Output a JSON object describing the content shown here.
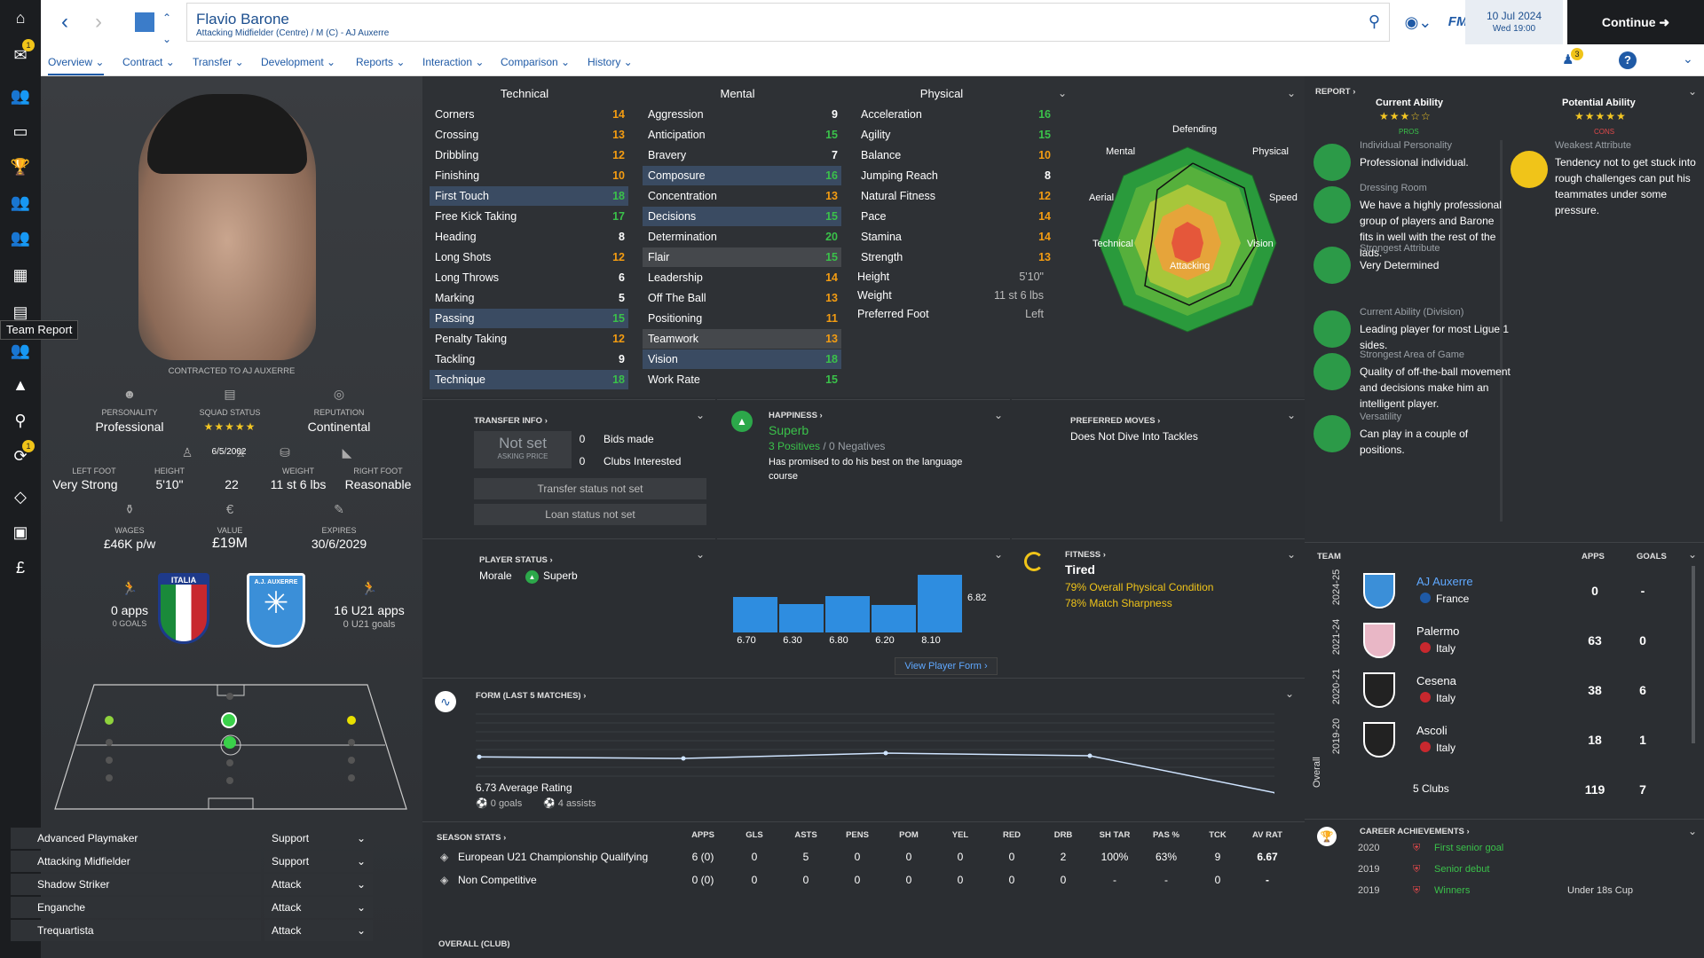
{
  "tooltip": "Team Report",
  "nav": {
    "badge1": "1",
    "badge2": "1"
  },
  "header": {
    "name": "Flavio Barone",
    "desc": "Attacking Midfielder (Centre) / M (C) - AJ Auxerre",
    "date": "10 Jul 2024",
    "time": "Wed 19:00",
    "continue": "Continue",
    "fm": "FM"
  },
  "tabs": [
    "Overview",
    "Contract",
    "Transfer",
    "Development",
    "Reports",
    "Interaction",
    "Comparison",
    "History"
  ],
  "notif_badge": "3",
  "left": {
    "contracted": "CONTRACTED TO AJ AUXERRE",
    "personality_label": "PERSONALITY",
    "personality": "Professional",
    "squad_label": "SQUAD STATUS",
    "squad_stars": "★★★★★",
    "reputation_label": "REPUTATION",
    "reputation": "Continental",
    "leftfoot_label": "LEFT FOOT",
    "leftfoot": "Very Strong",
    "height_label": "HEIGHT",
    "height": "5'10\"",
    "dob": "6/5/2002",
    "age": "22",
    "weight_label": "WEIGHT",
    "weight": "11 st 6 lbs",
    "rightfoot_label": "RIGHT FOOT",
    "rightfoot": "Reasonable",
    "wages_label": "WAGES",
    "wages": "£46K p/w",
    "value_label": "VALUE",
    "value": "£19M",
    "expires_label": "EXPIRES",
    "expires": "30/6/2029",
    "apps": "0 apps",
    "goals": "0 GOALS",
    "u21apps": "16 U21 apps",
    "u21goals": "0 U21 goals",
    "italia": "ITALIA",
    "auxerre": "A.J. AUXERRE"
  },
  "roles": [
    {
      "name": "Advanced Playmaker",
      "duty": "Support"
    },
    {
      "name": "Attacking Midfielder",
      "duty": "Support"
    },
    {
      "name": "Shadow Striker",
      "duty": "Attack"
    },
    {
      "name": "Enganche",
      "duty": "Attack"
    },
    {
      "name": "Trequartista",
      "duty": "Attack"
    }
  ],
  "attributes": {
    "headers": [
      "Technical",
      "Mental",
      "Physical"
    ],
    "technical": [
      [
        "Corners",
        "14"
      ],
      [
        "Crossing",
        "13"
      ],
      [
        "Dribbling",
        "12"
      ],
      [
        "Finishing",
        "10"
      ],
      [
        "First Touch",
        "18"
      ],
      [
        "Free Kick Taking",
        "17"
      ],
      [
        "Heading",
        "8"
      ],
      [
        "Long Shots",
        "12"
      ],
      [
        "Long Throws",
        "6"
      ],
      [
        "Marking",
        "5"
      ],
      [
        "Passing",
        "15"
      ],
      [
        "Penalty Taking",
        "12"
      ],
      [
        "Tackling",
        "9"
      ],
      [
        "Technique",
        "18"
      ]
    ],
    "mental": [
      [
        "Aggression",
        "9"
      ],
      [
        "Anticipation",
        "15"
      ],
      [
        "Bravery",
        "7"
      ],
      [
        "Composure",
        "16"
      ],
      [
        "Concentration",
        "13"
      ],
      [
        "Decisions",
        "15"
      ],
      [
        "Determination",
        "20"
      ],
      [
        "Flair",
        "15"
      ],
      [
        "Leadership",
        "14"
      ],
      [
        "Off The Ball",
        "13"
      ],
      [
        "Positioning",
        "11"
      ],
      [
        "Teamwork",
        "13"
      ],
      [
        "Vision",
        "18"
      ],
      [
        "Work Rate",
        "15"
      ]
    ],
    "physical": [
      [
        "Acceleration",
        "16"
      ],
      [
        "Agility",
        "15"
      ],
      [
        "Balance",
        "10"
      ],
      [
        "Jumping Reach",
        "8"
      ],
      [
        "Natural Fitness",
        "12"
      ],
      [
        "Pace",
        "14"
      ],
      [
        "Stamina",
        "14"
      ],
      [
        "Strength",
        "13"
      ]
    ],
    "height_label": "Height",
    "height": "5'10\"",
    "weight_label": "Weight",
    "weight": "11 st 6 lbs",
    "foot_label": "Preferred Foot",
    "foot": "Left"
  },
  "radar": {
    "labels": [
      "Defending",
      "Physical",
      "Speed",
      "Vision",
      "Attacking",
      "Technical",
      "Aerial",
      "Mental"
    ]
  },
  "report": {
    "title": "REPORT",
    "ca_label": "Current Ability",
    "pa_label": "Potential Ability",
    "ca_stars": "★★★☆☆",
    "pa_stars": "★★★★★",
    "pros": "PROS",
    "cons": "CONS",
    "pros_items": [
      {
        "label": "Individual Personality",
        "text": "Professional individual."
      },
      {
        "label": "Dressing Room",
        "text": "We have a highly professional group of players and Barone fits in well with the rest of the lads."
      },
      {
        "label": "Strongest Attribute",
        "text": "Very Determined"
      },
      {
        "label": "Current Ability (Division)",
        "text": "Leading player for most Ligue 1 sides."
      },
      {
        "label": "Strongest Area of Game",
        "text": "Quality of off-the-ball movement and decisions make him an intelligent player."
      },
      {
        "label": "Versatility",
        "text": "Can play in a couple of positions."
      }
    ],
    "cons_items": [
      {
        "label": "Weakest Attribute",
        "text": "Tendency not to get stuck into rough challenges can put his teammates under some pressure."
      }
    ]
  },
  "transfer": {
    "title": "TRANSFER INFO",
    "not_set": "Not set",
    "asking": "ASKING PRICE",
    "bids_n": "0",
    "bids": "Bids made",
    "clubs_n": "0",
    "clubs": "Clubs Interested",
    "status1": "Transfer status not set",
    "status2": "Loan status not set"
  },
  "happiness": {
    "title": "HAPPINESS",
    "value": "Superb",
    "positives": "3 Positives",
    "sep": " / ",
    "negatives": "0 Negatives",
    "text": "Has promised to do his best on the language course"
  },
  "moves": {
    "title": "PREFERRED MOVES",
    "text": "Does Not Dive Into Tackles"
  },
  "status": {
    "title": "PLAYER STATUS",
    "morale_label": "Morale",
    "morale": "Superb"
  },
  "form_bars": {
    "values": [
      6.7,
      6.3,
      6.8,
      6.2,
      8.1
    ],
    "labels": [
      "6.70",
      "6.30",
      "6.80",
      "6.20",
      "8.10"
    ],
    "avg": "6.82",
    "link": "View Player Form"
  },
  "fitness": {
    "title": "FITNESS",
    "value": "Tired",
    "line1": "79% Overall Physical Condition",
    "line2": "78% Match Sharpness"
  },
  "form": {
    "title": "FORM (LAST 5 MATCHES)",
    "avg": "6.73 Average Rating",
    "goals": "0 goals",
    "assists": "4 assists",
    "values": [
      6.73,
      6.7,
      6.8,
      6.75,
      6.05
    ]
  },
  "season": {
    "title": "SEASON STATS",
    "headers": [
      "APPS",
      "GLS",
      "ASTS",
      "PENS",
      "POM",
      "YEL",
      "RED",
      "DRB",
      "SH TAR",
      "PAS %",
      "TCK",
      "AV RAT"
    ],
    "rows": [
      {
        "name": "European U21 Championship Qualifying",
        "vals": [
          "6 (0)",
          "0",
          "5",
          "0",
          "0",
          "0",
          "0",
          "2",
          "100%",
          "63%",
          "9",
          "6.67"
        ]
      },
      {
        "name": "Non Competitive",
        "vals": [
          "0 (0)",
          "0",
          "0",
          "0",
          "0",
          "0",
          "0",
          "0",
          "-",
          "-",
          "0",
          "-"
        ]
      }
    ],
    "overall": "OVERALL (CLUB)"
  },
  "career": {
    "team_h": "TEAM",
    "apps_h": "APPS",
    "goals_h": "GOALS",
    "rows": [
      {
        "season": "2024-25",
        "club": "AJ Auxerre",
        "country": "France",
        "apps": "0",
        "goals": "-"
      },
      {
        "season": "2021-24",
        "club": "Palermo",
        "country": "Italy",
        "apps": "63",
        "goals": "0"
      },
      {
        "season": "2020-21",
        "club": "Cesena",
        "country": "Italy",
        "apps": "38",
        "goals": "6"
      },
      {
        "season": "2019-20",
        "club": "Ascoli",
        "country": "Italy",
        "apps": "18",
        "goals": "1"
      }
    ],
    "overall_label": "Overall",
    "total_clubs": "5 Clubs",
    "total_apps": "119",
    "total_goals": "7"
  },
  "achievements": {
    "title": "CAREER ACHIEVEMENTS",
    "rows": [
      {
        "year": "2020",
        "text": "First senior goal",
        "extra": ""
      },
      {
        "year": "2019",
        "text": "Senior debut",
        "extra": ""
      },
      {
        "year": "2019",
        "text": "Winners",
        "extra": "Under 18s Cup"
      }
    ]
  }
}
